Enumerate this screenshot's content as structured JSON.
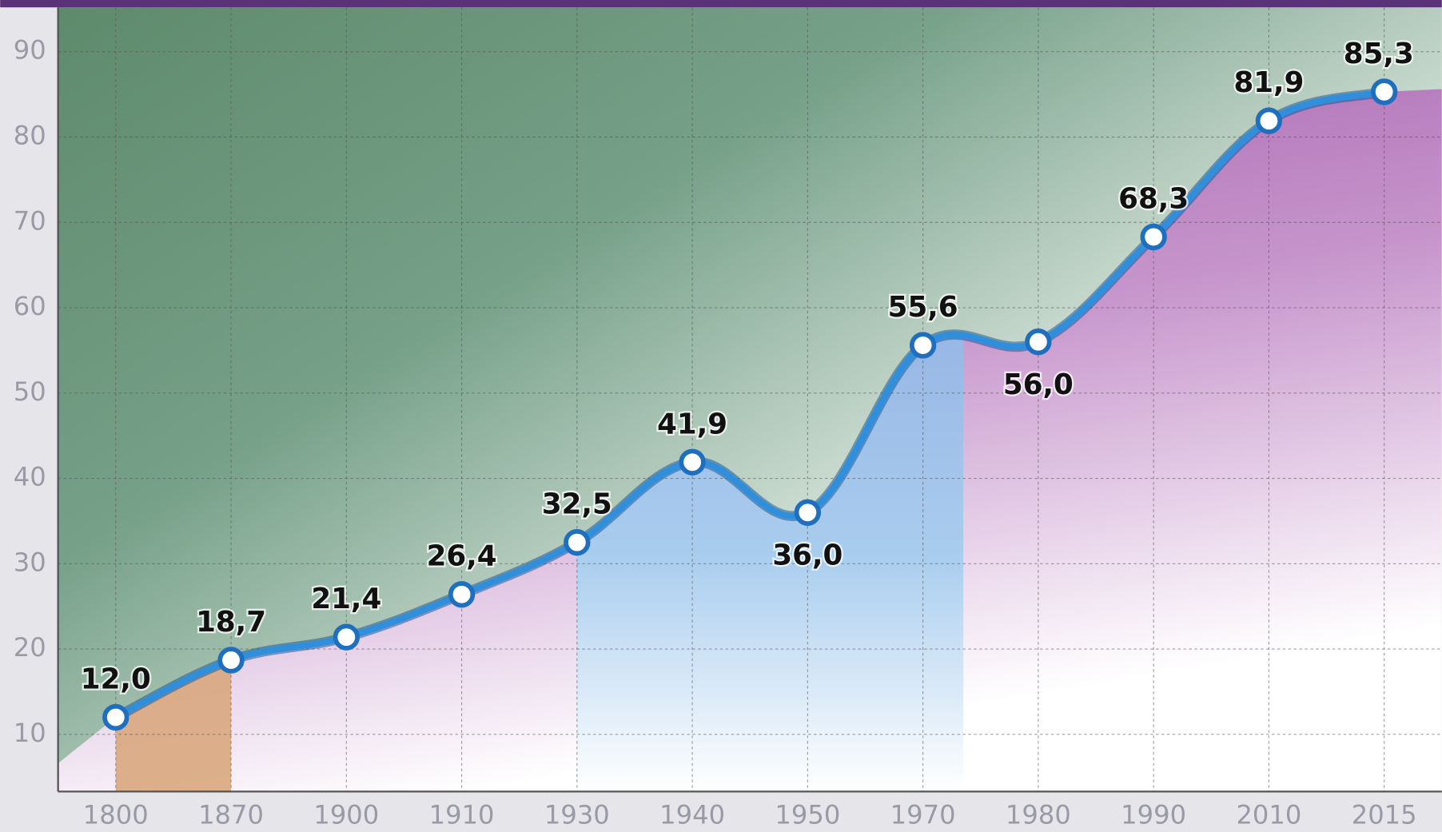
{
  "chart_data": {
    "type": "line",
    "categories": [
      "1800",
      "1870",
      "1900",
      "1910",
      "1930",
      "1940",
      "1950",
      "1970",
      "1980",
      "1990",
      "2010",
      "2015"
    ],
    "series": [
      {
        "color": "#2f8fdc",
        "values": [
          12.0,
          18.7,
          21.4,
          26.4,
          32.5,
          41.9,
          36.0,
          55.6,
          56.0,
          68.3,
          81.9,
          85.3
        ],
        "value_labels": [
          "12,0",
          "18,7",
          "21,4",
          "26,4",
          "32,5",
          "41,9",
          "36,0",
          "55,6",
          "56,0",
          "68,3",
          "81,9",
          "85,3"
        ]
      }
    ],
    "ylim": [
      3.3,
      95.2
    ],
    "yticks": [
      10,
      20,
      30,
      40,
      50,
      60,
      70,
      80,
      90
    ],
    "grid": true
  }
}
